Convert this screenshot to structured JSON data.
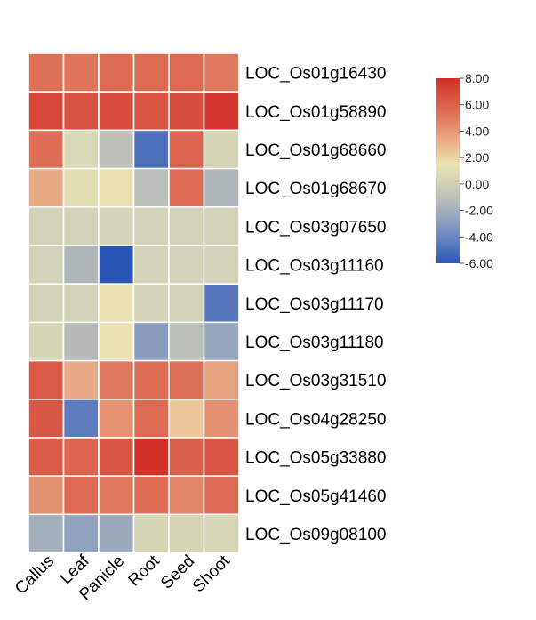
{
  "chart_data": {
    "type": "heatmap",
    "columns": [
      "Callus",
      "Leaf",
      "Panicle",
      "Root",
      "Seed",
      "Shoot"
    ],
    "rows": [
      "LOC_Os01g16430",
      "LOC_Os01g58890",
      "LOC_Os01g68660",
      "LOC_Os01g68670",
      "LOC_Os03g07650",
      "LOC_Os03g11160",
      "LOC_Os03g11170",
      "LOC_Os03g11180",
      "LOC_Os03g31510",
      "LOC_Os04g28250",
      "LOC_Os05g33880",
      "LOC_Os05g41460",
      "LOC_Os09g08100"
    ],
    "values": [
      [
        5.4,
        5.2,
        5.6,
        5.6,
        5.7,
        5.1
      ],
      [
        7.0,
        6.6,
        6.8,
        6.5,
        6.7,
        7.7
      ],
      [
        5.5,
        0.5,
        -1.0,
        -4.9,
        5.8,
        0.3
      ],
      [
        3.3,
        1.0,
        1.3,
        -1.1,
        5.6,
        -1.6
      ],
      [
        0.2,
        0.2,
        0.2,
        0.2,
        0.2,
        0.2
      ],
      [
        0.2,
        -1.6,
        -6.0,
        0.2,
        0.2,
        0.2
      ],
      [
        0.2,
        0.2,
        1.4,
        0.2,
        0.2,
        -4.6
      ],
      [
        0.3,
        -1.3,
        1.4,
        -3.0,
        -1.0,
        -2.4
      ],
      [
        6.3,
        3.3,
        5.1,
        5.5,
        5.4,
        3.7
      ],
      [
        6.4,
        -4.4,
        4.1,
        5.6,
        2.4,
        4.2
      ],
      [
        6.2,
        5.9,
        6.5,
        7.9,
        6.0,
        6.5
      ],
      [
        4.2,
        5.7,
        5.0,
        5.5,
        4.6,
        5.6
      ],
      [
        -2.0,
        -2.7,
        -2.3,
        0.3,
        0.3,
        0.4
      ]
    ],
    "colorbar": {
      "min": -6.0,
      "max": 8.0,
      "ticks": [
        "8.00",
        "6.00",
        "4.00",
        "2.00",
        "0.00",
        "-2.00",
        "-4.00",
        "-6.00"
      ],
      "stops": [
        {
          "value": -6.0,
          "color": "#2a56b8"
        },
        {
          "value": -3.5,
          "color": "#7b93c2"
        },
        {
          "value": -1.5,
          "color": "#b2b8ba"
        },
        {
          "value": 0.5,
          "color": "#d9d8b6"
        },
        {
          "value": 1.5,
          "color": "#eae3b0"
        },
        {
          "value": 3.0,
          "color": "#ebb48c"
        },
        {
          "value": 5.0,
          "color": "#e07a5f"
        },
        {
          "value": 8.0,
          "color": "#d12f27"
        }
      ]
    },
    "legend": "right",
    "grid": true,
    "cell_border_color": "#ffffff"
  }
}
